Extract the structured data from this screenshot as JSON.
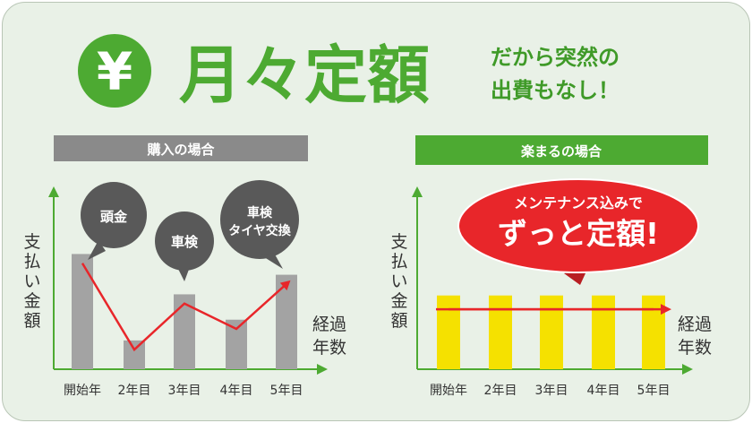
{
  "header": {
    "yen_symbol": "¥",
    "title": "月々定額",
    "tagline_line1": "だから突然の",
    "tagline_line2": "出費もなし！"
  },
  "colors": {
    "green": "#4daa32",
    "dark_green": "#3f9a28",
    "gray_bar": "#a3a3a3",
    "label_gray": "#8a8a8a",
    "yellow_bar": "#f5e100",
    "red": "#e8262a",
    "bubble_gray": "#595959",
    "background": "#e9f1e7"
  },
  "chart_data": [
    {
      "type": "bar",
      "title": "購入の場合",
      "ylabel": "支払い金額",
      "xlabel": "経過年数",
      "categories": [
        "開始年",
        "2年目",
        "3年目",
        "4年目",
        "5年目"
      ],
      "series": [
        {
          "values": [
            100,
            25,
            65,
            43,
            82
          ]
        }
      ],
      "ylim": [
        0,
        140
      ],
      "line": {
        "type": "line",
        "style": "arrow",
        "values": [
          92,
          17,
          57,
          35,
          74
        ]
      },
      "callouts": [
        "頭金",
        "車検",
        "車検\nタイヤ交換"
      ],
      "grid": false
    },
    {
      "type": "bar",
      "title": "楽まるの場合",
      "ylabel": "支払い金額",
      "xlabel": "経過年数",
      "categories": [
        "開始年",
        "2年目",
        "3年目",
        "4年目",
        "5年目"
      ],
      "series": [
        {
          "values": [
            64,
            64,
            64,
            64,
            64
          ]
        }
      ],
      "ylim": [
        0,
        140
      ],
      "line": {
        "type": "line",
        "style": "arrow",
        "values": [
          52,
          52,
          52,
          52,
          52
        ]
      },
      "callout": {
        "line1": "メンテナンス込みで",
        "line2": "ずっと定額!"
      },
      "grid": false
    }
  ]
}
